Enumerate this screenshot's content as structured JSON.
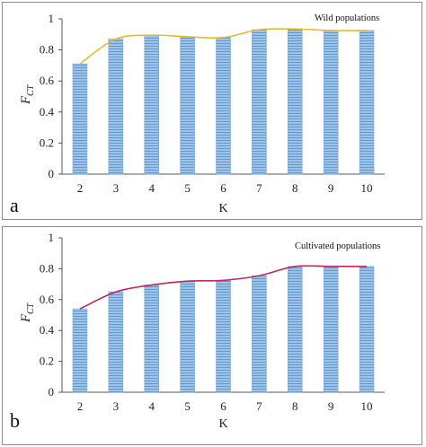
{
  "chart_data": [
    {
      "type": "bar",
      "panel_letter": "a",
      "legend_text": "Wild populations",
      "xlabel": "K",
      "ylabel": "F",
      "ylabel_sub": "CT",
      "categories": [
        "2",
        "3",
        "4",
        "5",
        "6",
        "7",
        "8",
        "9",
        "10"
      ],
      "values": [
        0.71,
        0.87,
        0.895,
        0.885,
        0.88,
        0.93,
        0.935,
        0.925,
        0.925
      ],
      "trend_line": true,
      "line_color": "#e8b830",
      "bar_color": "#9dc3e6",
      "bar_stripe_color": "#5b8fc9",
      "ylim": [
        0,
        1
      ],
      "yticks": [
        "0",
        "0.2",
        "0.4",
        "0.6",
        "0.8",
        "1"
      ],
      "grid": false
    },
    {
      "type": "bar",
      "panel_letter": "b",
      "legend_text": "Cultivated populations",
      "xlabel": "K",
      "ylabel": "F",
      "ylabel_sub": "CT",
      "categories": [
        "2",
        "3",
        "4",
        "5",
        "6",
        "7",
        "8",
        "9",
        "10"
      ],
      "values": [
        0.54,
        0.65,
        0.695,
        0.72,
        0.725,
        0.755,
        0.815,
        0.815,
        0.815
      ],
      "trend_line": true,
      "line_color": "#c0295a",
      "bar_color": "#9dc3e6",
      "bar_stripe_color": "#5b8fc9",
      "ylim": [
        0,
        1
      ],
      "yticks": [
        "0",
        "0.2",
        "0.4",
        "0.6",
        "0.8",
        "1"
      ],
      "grid": false
    }
  ]
}
